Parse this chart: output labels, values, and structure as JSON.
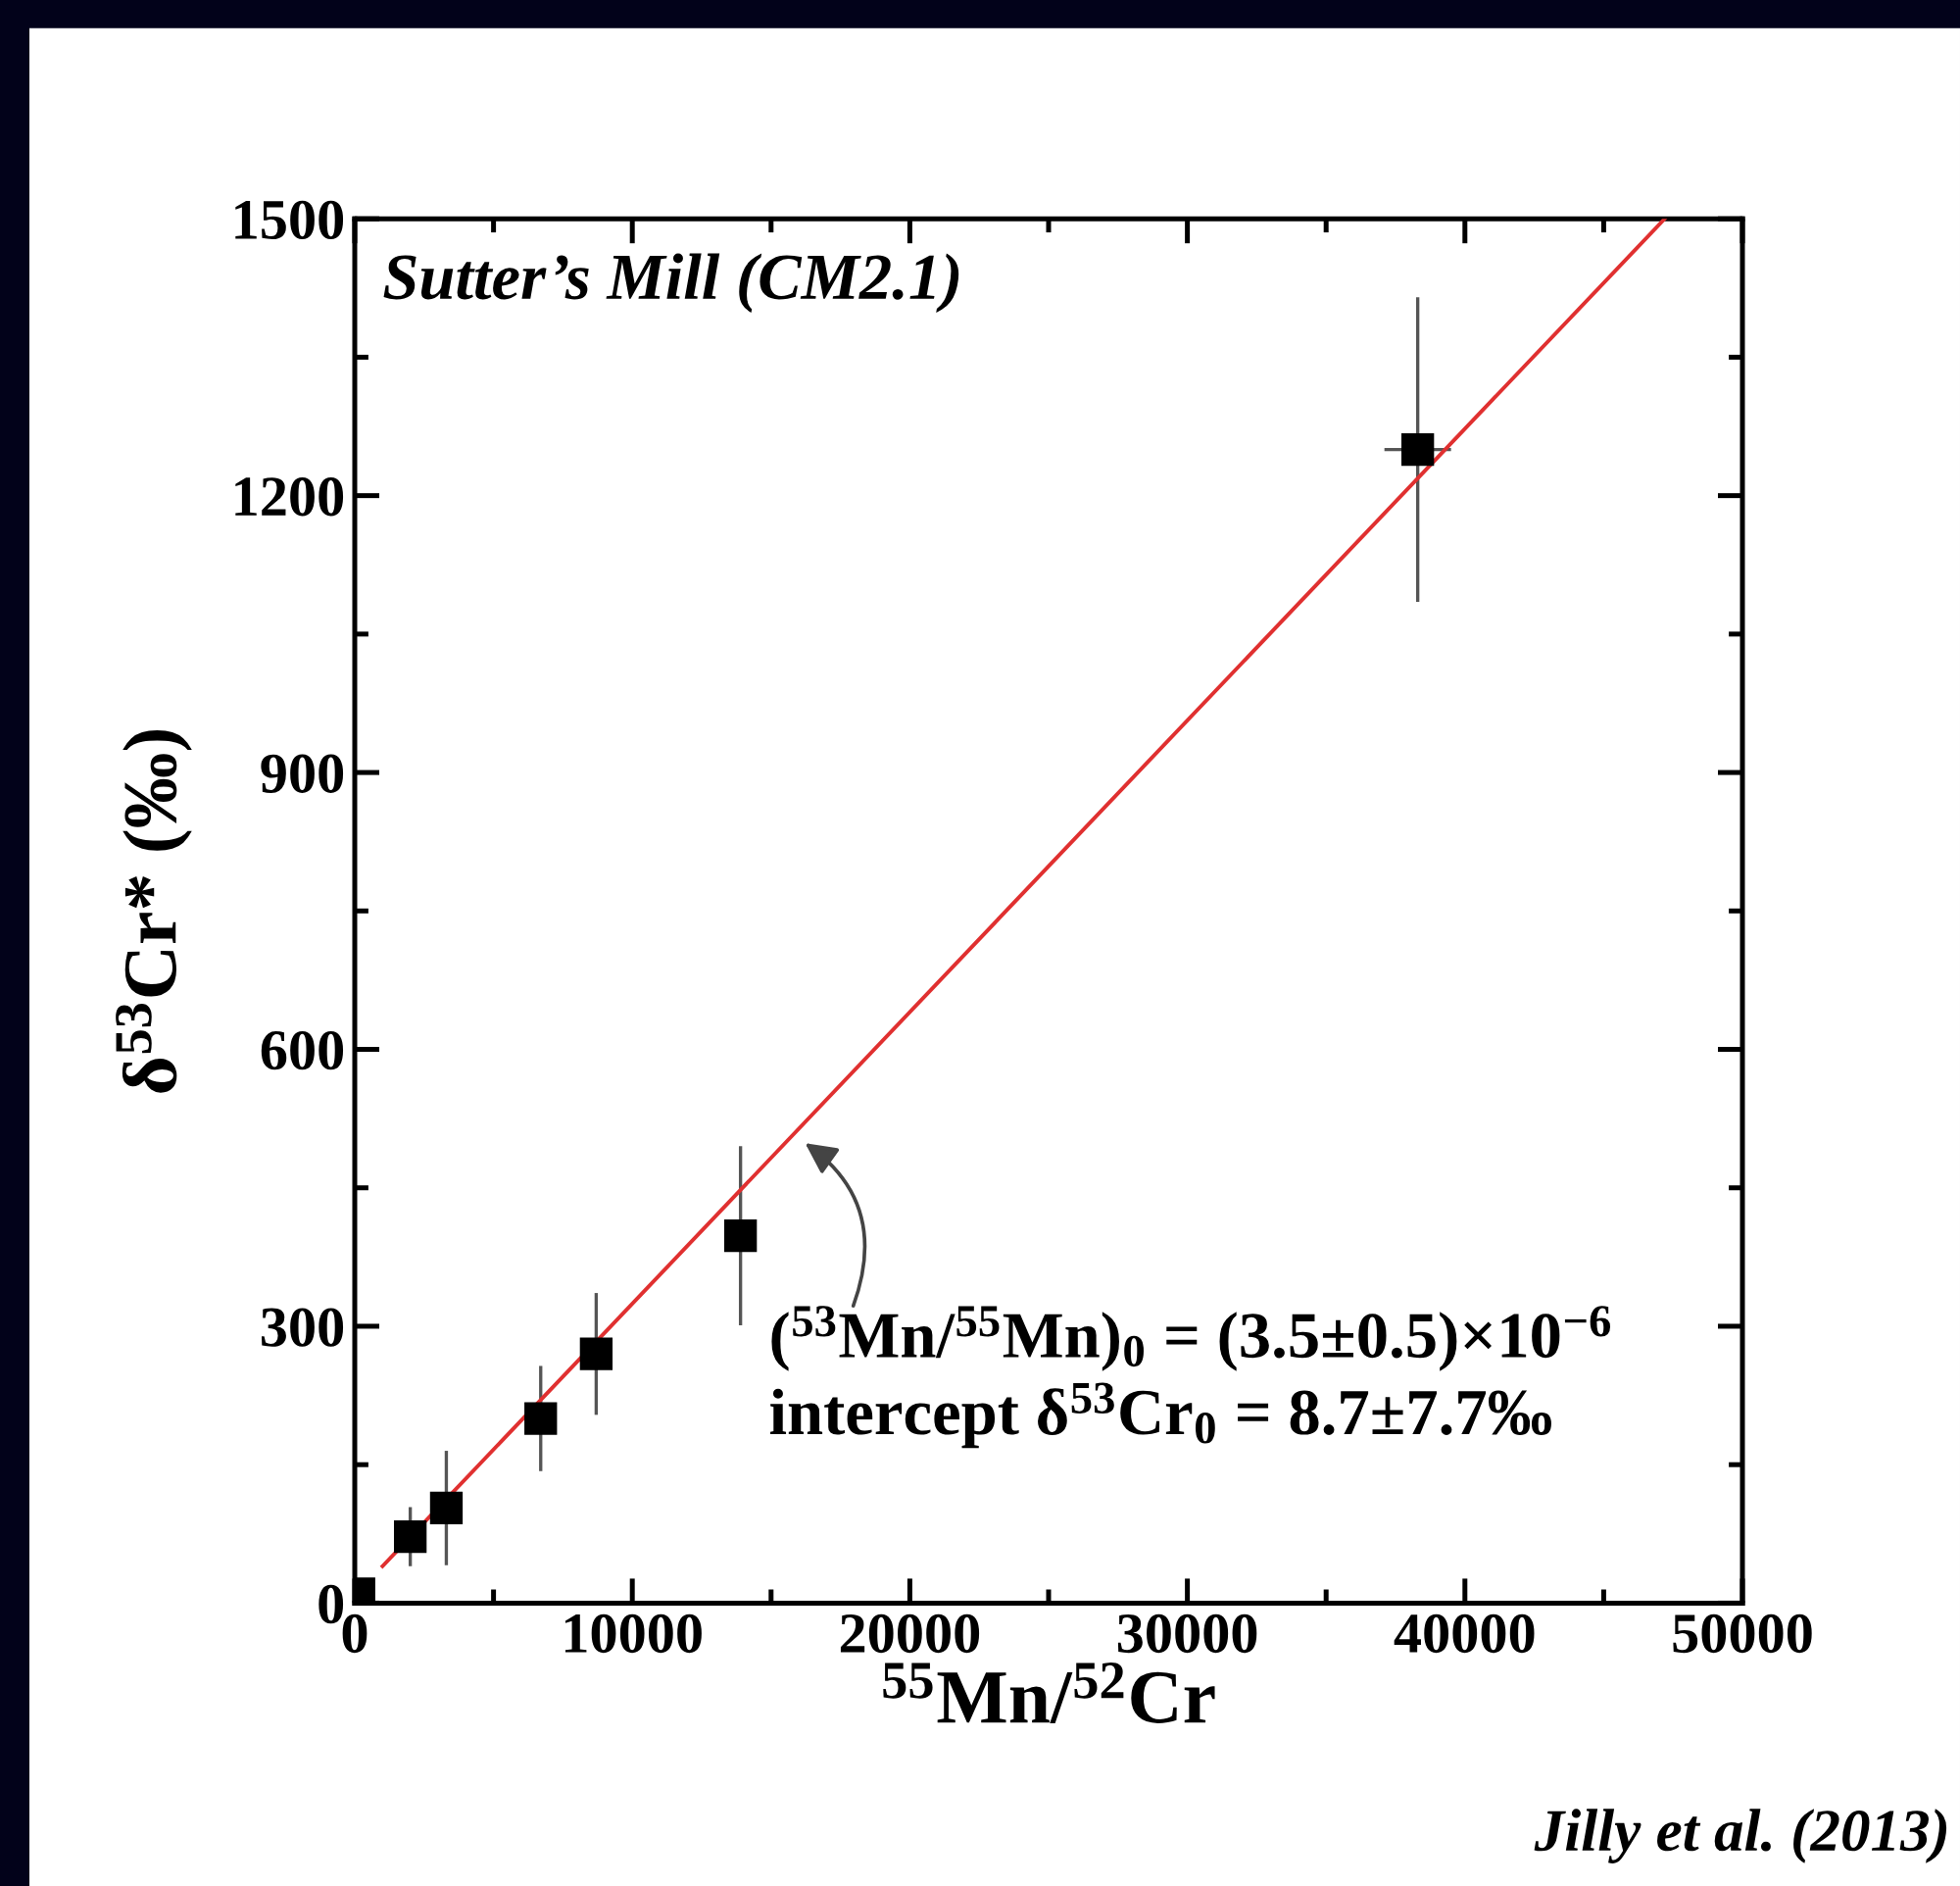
{
  "chart_data": {
    "type": "scatter",
    "xlabel": "$^{55}$Mn/$^{52}$Cr",
    "ylabel": "δ$^{53}$Cr* (‰)",
    "xlim": [
      0,
      50000
    ],
    "xticks": [
      0,
      10000,
      20000,
      30000,
      40000,
      50000
    ],
    "ylim": [
      0,
      1500
    ],
    "yticks": [
      0,
      300,
      600,
      900,
      1200,
      1500
    ],
    "grid": false,
    "legend": false,
    "marker": "square",
    "series": [
      {
        "color": "#000000",
        "x": [
          150,
          2000,
          3300,
          6700,
          8700,
          13900,
          38300
        ],
        "values": [
          10,
          72,
          103,
          200,
          270,
          398,
          1250
        ],
        "errors": [
          null,
          32,
          62,
          57,
          66,
          97,
          165
        ],
        "xerrors": [
          null,
          null,
          null,
          null,
          null,
          null,
          1200
        ]
      },
      {
        "type": "line",
        "color": "#e03030",
        "line_style": "solid",
        "marker": "none",
        "x": [
          1000,
          47200
        ],
        "values": [
          40,
          1500
        ]
      }
    ],
    "annotations": [
      "Sutter’s Mill (CM2.1)",
      {
        "text": "($^{53}$Mn/$^{55}$Mn)$_{0}$ = (3.5±0.5)×10$^{−6}$",
        "x": 15900,
        "y": 505
      },
      "intercept δ$^{53}$Cr$_{0}$ = 8.7±7.7‰",
      "Jilly et al. (2013)"
    ]
  }
}
